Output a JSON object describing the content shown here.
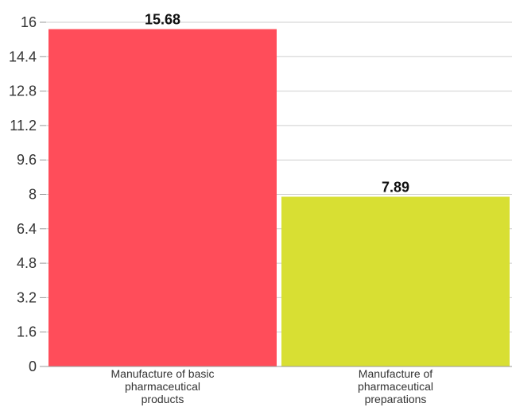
{
  "chart_data": {
    "type": "bar",
    "categories": [
      [
        "Manufacture of basic",
        "pharmaceutical",
        "products"
      ],
      [
        "Manufacture of",
        "pharmaceutical",
        "preparations"
      ]
    ],
    "values": [
      15.68,
      7.89
    ],
    "value_labels": [
      "15.68",
      "7.89"
    ],
    "colors": [
      "#ff4d5a",
      "#d8df33"
    ],
    "yticks": [
      "0",
      "1.6",
      "3.2",
      "4.8",
      "6.4",
      "8",
      "9.6",
      "11.2",
      "12.8",
      "14.4",
      "16"
    ],
    "ylim": [
      0,
      16
    ],
    "grid": true,
    "legend": "none"
  }
}
